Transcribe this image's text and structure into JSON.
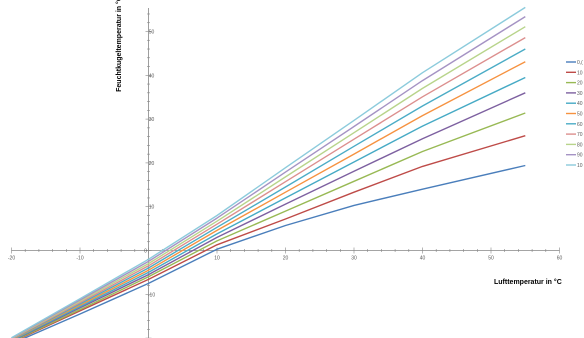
{
  "chart_data": {
    "type": "line",
    "xlabel": "Lufttemperatur in °C",
    "ylabel": "Feuchtkugeltemperatur in °C",
    "xlim": [
      -20,
      60
    ],
    "ylim": [
      -20,
      55
    ],
    "x_ticks": [
      -20,
      -10,
      0,
      10,
      20,
      30,
      40,
      50,
      60
    ],
    "x_tick_labels": [
      "-20",
      "-10",
      "0",
      "10",
      "20",
      "30",
      "40",
      "50",
      "60"
    ],
    "y_ticks": [
      -10,
      10,
      20,
      30,
      40,
      50
    ],
    "y_tick_labels": [
      "-10",
      "10",
      "20",
      "30",
      "40",
      "50"
    ],
    "origin_label": "0",
    "grid": false,
    "legend_position": "right",
    "x": [
      -20,
      -10,
      0,
      10,
      20,
      30,
      40,
      55
    ],
    "series": [
      {
        "name": "0,(",
        "color": "#4a7ebb",
        "values": [
          -21.3,
          -14.5,
          -7.5,
          0.3,
          5.7,
          10.3,
          14.0,
          19.4
        ]
      },
      {
        "name": "10",
        "color": "#be4b48",
        "values": [
          -21.0,
          -13.8,
          -6.6,
          1.3,
          7.2,
          13.3,
          19.2,
          26.2
        ]
      },
      {
        "name": "20",
        "color": "#98b954",
        "values": [
          -20.9,
          -13.5,
          -6.0,
          2.2,
          9.0,
          15.8,
          22.6,
          31.4
        ]
      },
      {
        "name": "30",
        "color": "#7d60a0",
        "values": [
          -20.7,
          -13.1,
          -5.5,
          3.0,
          10.6,
          18.1,
          25.5,
          36.0
        ]
      },
      {
        "name": "40",
        "color": "#46aac5",
        "values": [
          -20.6,
          -12.8,
          -5.0,
          3.8,
          12.0,
          20.2,
          28.4,
          39.5
        ]
      },
      {
        "name": "50",
        "color": "#f69240",
        "values": [
          -20.4,
          -12.5,
          -4.5,
          4.6,
          13.3,
          22.0,
          30.8,
          43.1
        ]
      },
      {
        "name": "60",
        "color": "#4bacc6",
        "values": [
          -20.3,
          -12.2,
          -4.0,
          5.3,
          14.5,
          23.8,
          33.0,
          46.0
        ]
      },
      {
        "name": "70",
        "color": "#dc8f8e",
        "values": [
          -20.2,
          -11.9,
          -3.5,
          6.0,
          15.7,
          25.4,
          35.1,
          48.6
        ]
      },
      {
        "name": "80",
        "color": "#b8d48b",
        "values": [
          -20.1,
          -11.6,
          -3.0,
          6.7,
          16.8,
          26.9,
          37.0,
          51.1
        ]
      },
      {
        "name": "90",
        "color": "#a593c4",
        "values": [
          -20.0,
          -11.3,
          -2.5,
          7.4,
          17.9,
          28.3,
          38.8,
          53.4
        ]
      },
      {
        "name": "10",
        "color": "#8ccbdc",
        "values": [
          -19.9,
          -11.0,
          -2.0,
          8.0,
          18.9,
          29.7,
          40.6,
          55.5
        ]
      }
    ]
  }
}
